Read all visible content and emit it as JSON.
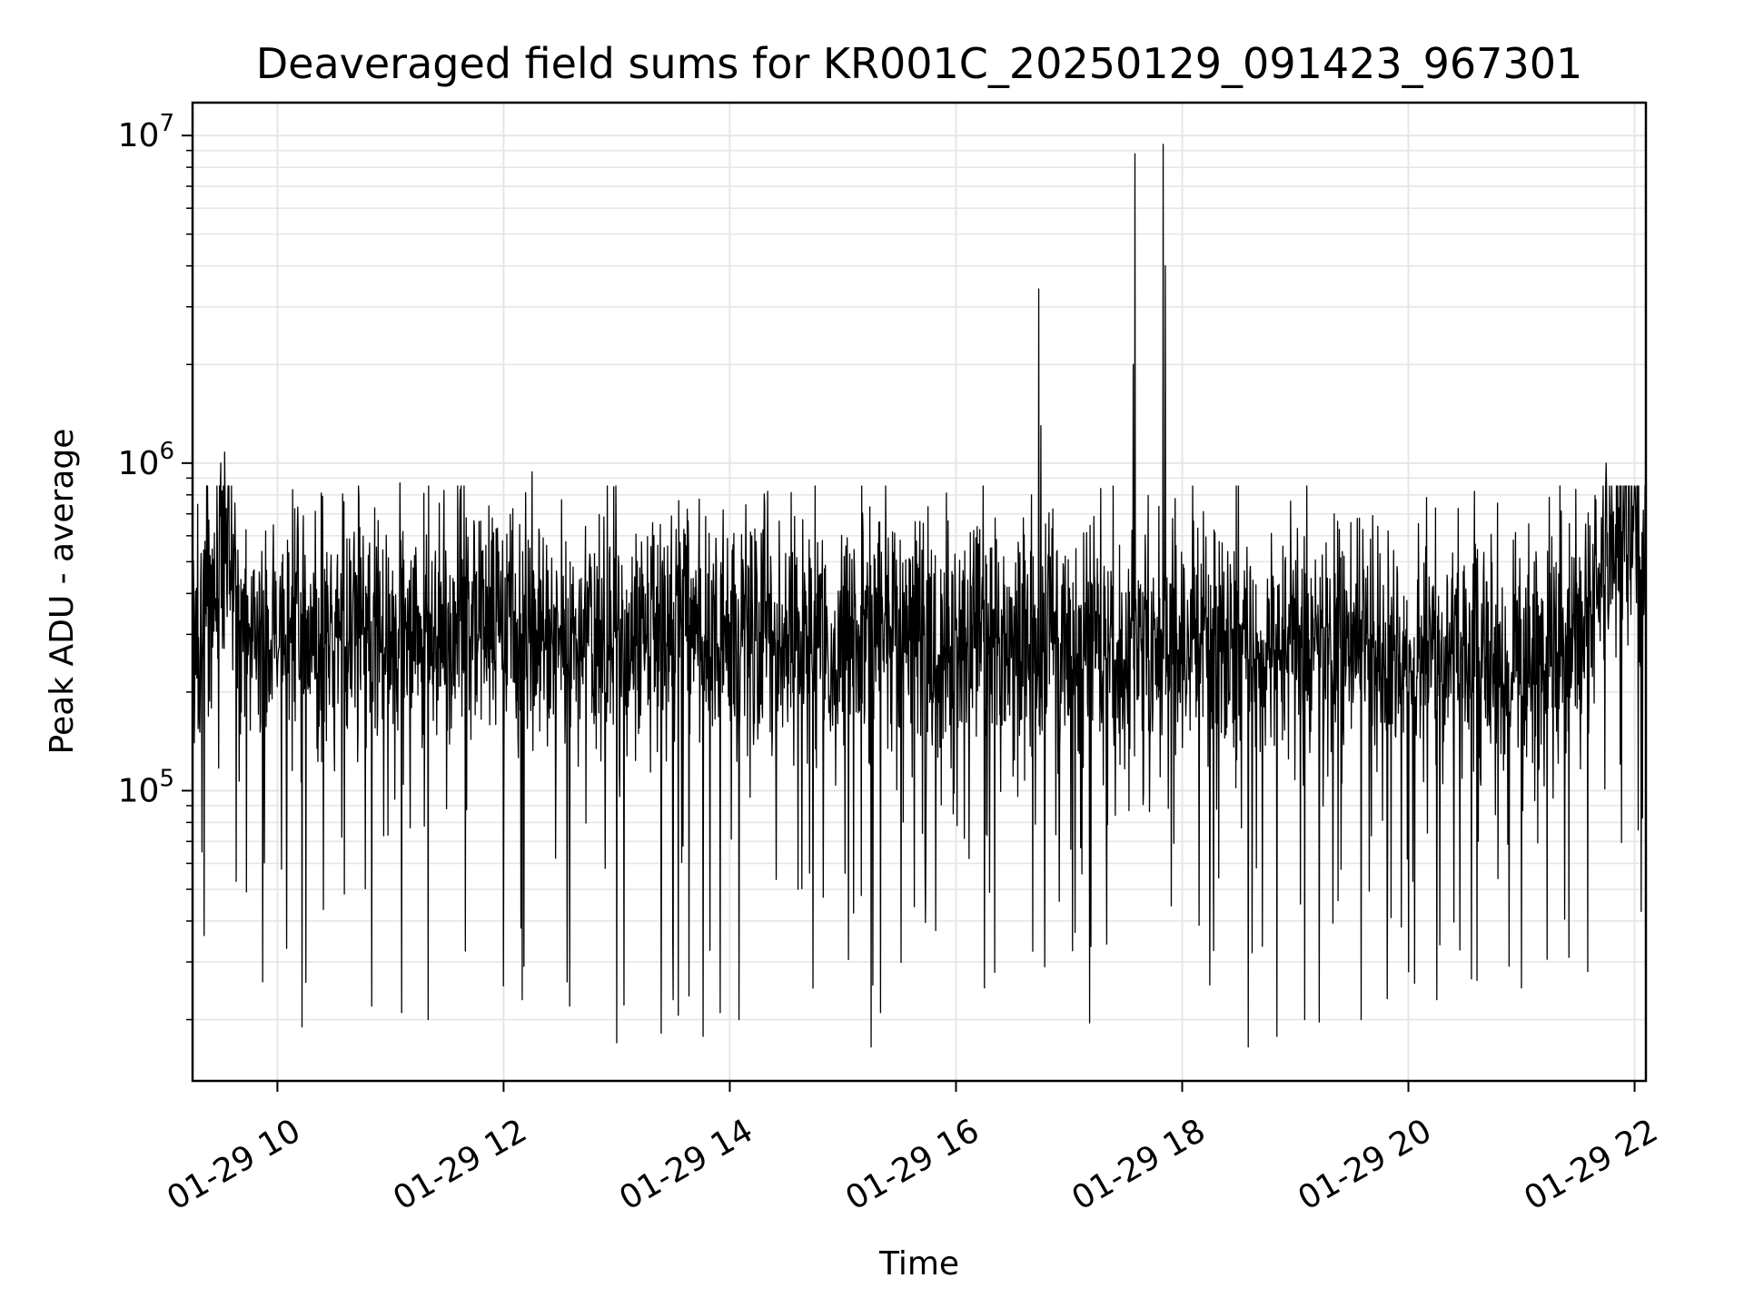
{
  "chart_data": {
    "type": "line",
    "title": "Deaveraged field sums for KR001C_20250129_091423_967301",
    "xlabel": "Time",
    "ylabel": "Peak ADU - average",
    "yscale": "log",
    "grid": true,
    "line_color": "#000000",
    "grid_color": "#e6e6e6",
    "xlim": [
      "2025-01-29 09:15",
      "2025-01-29 22:06"
    ],
    "ylim": [
      13000,
      12600000
    ],
    "x_ticks": [
      {
        "time": "2025-01-29 10:00",
        "label": "01-29 10"
      },
      {
        "time": "2025-01-29 12:00",
        "label": "01-29 12"
      },
      {
        "time": "2025-01-29 14:00",
        "label": "01-29 14"
      },
      {
        "time": "2025-01-29 16:00",
        "label": "01-29 16"
      },
      {
        "time": "2025-01-29 18:00",
        "label": "01-29 18"
      },
      {
        "time": "2025-01-29 20:00",
        "label": "01-29 20"
      },
      {
        "time": "2025-01-29 22:00",
        "label": "01-29 22"
      }
    ],
    "y_ticks": [
      {
        "value": 100000,
        "base": "10",
        "exp": "5"
      },
      {
        "value": 1000000,
        "base": "10",
        "exp": "6"
      },
      {
        "value": 10000000,
        "base": "10",
        "exp": "7"
      }
    ],
    "baseline_profile": [
      {
        "time": "2025-01-29 09:15",
        "level": 260000
      },
      {
        "time": "2025-01-29 09:25",
        "level": 380000
      },
      {
        "time": "2025-01-29 09:33",
        "level": 600000
      },
      {
        "time": "2025-01-29 09:40",
        "level": 320000
      },
      {
        "time": "2025-01-29 21:25",
        "level": 260000
      },
      {
        "time": "2025-01-29 21:40",
        "level": 380000
      },
      {
        "time": "2025-01-29 21:50",
        "level": 600000
      },
      {
        "time": "2025-01-29 22:06",
        "level": 560000
      }
    ],
    "series": [
      {
        "values": [
          [
            "2025-01-29 09:16",
            140000
          ],
          [
            "2025-01-29 09:20",
            65000
          ],
          [
            "2025-01-29 09:22",
            540000
          ],
          [
            "2025-01-29 09:30",
            1000000
          ],
          [
            "2025-01-29 09:32",
            1080000
          ],
          [
            "2025-01-29 10:05",
            33000
          ],
          [
            "2025-01-29 10:08",
            830000
          ],
          [
            "2025-01-29 10:13",
            19000
          ],
          [
            "2025-01-29 10:15",
            26000
          ],
          [
            "2025-01-29 10:50",
            22000
          ],
          [
            "2025-01-29 11:05",
            870000
          ],
          [
            "2025-01-29 11:06",
            21000
          ],
          [
            "2025-01-29 11:20",
            20000
          ],
          [
            "2025-01-29 12:10",
            23000
          ],
          [
            "2025-01-29 12:15",
            940000
          ],
          [
            "2025-01-29 12:35",
            22000
          ],
          [
            "2025-01-29 13:00",
            17000
          ],
          [
            "2025-01-29 13:30",
            23000
          ],
          [
            "2025-01-29 13:55",
            21000
          ],
          [
            "2025-01-29 14:05",
            20000
          ],
          [
            "2025-01-29 14:20",
            820000
          ],
          [
            "2025-01-29 15:15",
            16500
          ],
          [
            "2025-01-29 15:20",
            21000
          ],
          [
            "2025-01-29 15:55",
            810000
          ],
          [
            "2025-01-29 16:15",
            25000
          ],
          [
            "2025-01-29 16:40",
            800000
          ],
          [
            "2025-01-29 16:44",
            3400000
          ],
          [
            "2025-01-29 16:45",
            1300000
          ],
          [
            "2025-01-29 16:47",
            29000
          ],
          [
            "2025-01-29 17:20",
            34000
          ],
          [
            "2025-01-29 17:34",
            2000000
          ],
          [
            "2025-01-29 17:35",
            8800000
          ],
          [
            "2025-01-29 17:50",
            9400000
          ],
          [
            "2025-01-29 17:51",
            4000000
          ],
          [
            "2025-01-29 18:35",
            16500
          ],
          [
            "2025-01-29 18:37",
            32000
          ],
          [
            "2025-01-29 19:05",
            20000
          ],
          [
            "2025-01-29 19:35",
            20000
          ],
          [
            "2025-01-29 20:00",
            28000
          ],
          [
            "2025-01-29 20:15",
            23000
          ],
          [
            "2025-01-29 20:35",
            820000
          ],
          [
            "2025-01-29 21:00",
            25000
          ],
          [
            "2025-01-29 21:45",
            1000000
          ],
          [
            "2025-01-29 22:00",
            850000
          ]
        ]
      }
    ]
  }
}
